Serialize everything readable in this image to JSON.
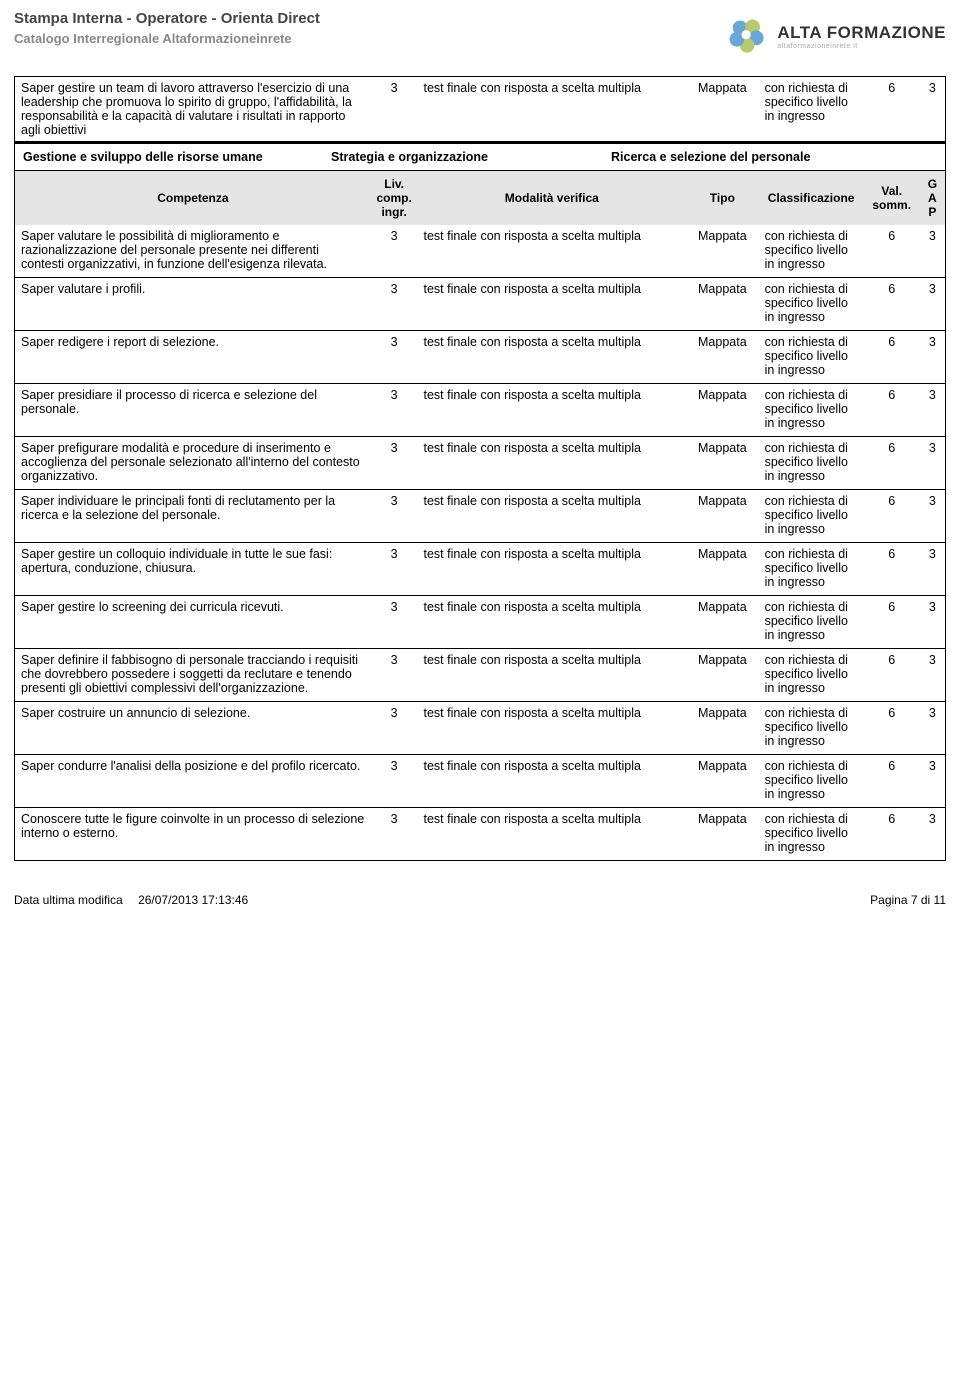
{
  "header": {
    "title": "Stampa Interna - Operatore - Orienta Direct",
    "subtitle": "Catalogo Interregionale Altaformazioneinrete",
    "logo_big": "ALTA FORMAZIONE",
    "logo_small": "altaformazioneinrete.it"
  },
  "top_row": {
    "competenza": "Saper gestire un team di lavoro attraverso l'esercizio di una leadership che promuova lo spirito di gruppo, l'affidabilità, la responsabilità e la capacità di valutare i risultati in rapporto agli obiettivi",
    "liv": "3",
    "modalita": "test finale con risposta a scelta multipla",
    "tipo": "Mappata",
    "classificazione": "con richiesta di specifico livello in ingresso",
    "val": "6",
    "gap": "3"
  },
  "section": {
    "col1": "Gestione e sviluppo delle risorse umane",
    "col2": "Strategia e organizzazione",
    "col3": "Ricerca e selezione del personale"
  },
  "columns": {
    "competenza": "Competenza",
    "liv": "Liv. comp. ingr.",
    "modalita": "Modalità verifica",
    "tipo": "Tipo",
    "classificazione": "Classificazione",
    "val": "Val. somm.",
    "gap": "G A P"
  },
  "rows": [
    {
      "competenza": "Saper valutare le possibilità di miglioramento e razionalizzazione del personale presente nei differenti contesti organizzativi, in funzione dell'esigenza rilevata.",
      "liv": "3",
      "modalita": "test finale con risposta a scelta multipla",
      "tipo": "Mappata",
      "classificazione": "con richiesta di specifico livello in ingresso",
      "val": "6",
      "gap": "3"
    },
    {
      "competenza": "Saper valutare i profili.",
      "liv": "3",
      "modalita": "test finale con risposta a scelta multipla",
      "tipo": "Mappata",
      "classificazione": "con richiesta di specifico livello in ingresso",
      "val": "6",
      "gap": "3"
    },
    {
      "competenza": "Saper redigere i report di selezione.",
      "liv": "3",
      "modalita": "test finale con risposta a scelta multipla",
      "tipo": "Mappata",
      "classificazione": "con richiesta di specifico livello in ingresso",
      "val": "6",
      "gap": "3"
    },
    {
      "competenza": "Saper presidiare il processo di ricerca e selezione del personale.",
      "liv": "3",
      "modalita": "test finale con risposta a scelta multipla",
      "tipo": "Mappata",
      "classificazione": "con richiesta di specifico livello in ingresso",
      "val": "6",
      "gap": "3"
    },
    {
      "competenza": "Saper prefigurare modalità e procedure di inserimento e accoglienza del personale selezionato all'interno del contesto organizzativo.",
      "liv": "3",
      "modalita": "test finale con risposta a scelta multipla",
      "tipo": "Mappata",
      "classificazione": "con richiesta di specifico livello in ingresso",
      "val": "6",
      "gap": "3"
    },
    {
      "competenza": "Saper individuare le principali fonti di reclutamento per la ricerca e la selezione del personale.",
      "liv": "3",
      "modalita": "test finale con risposta a scelta multipla",
      "tipo": "Mappata",
      "classificazione": "con richiesta di specifico livello in ingresso",
      "val": "6",
      "gap": "3"
    },
    {
      "competenza": "Saper gestire un colloquio individuale in tutte le sue fasi: apertura, conduzione, chiusura.",
      "liv": "3",
      "modalita": "test finale con risposta a scelta multipla",
      "tipo": "Mappata",
      "classificazione": "con richiesta di specifico livello in ingresso",
      "val": "6",
      "gap": "3"
    },
    {
      "competenza": "Saper gestire lo screening dei curricula ricevuti.",
      "liv": "3",
      "modalita": "test finale con risposta a scelta multipla",
      "tipo": "Mappata",
      "classificazione": "con richiesta di specifico livello in ingresso",
      "val": "6",
      "gap": "3"
    },
    {
      "competenza": "Saper definire il fabbisogno di personale tracciando i requisiti che dovrebbero possedere i soggetti da reclutare e tenendo presenti gli obiettivi complessivi dell'organizzazione.",
      "liv": "3",
      "modalita": "test finale con risposta a scelta multipla",
      "tipo": "Mappata",
      "classificazione": "con richiesta di specifico livello in ingresso",
      "val": "6",
      "gap": "3"
    },
    {
      "competenza": "Saper costruire un annuncio di selezione.",
      "liv": "3",
      "modalita": "test finale con risposta a scelta multipla",
      "tipo": "Mappata",
      "classificazione": "con richiesta di specifico livello in ingresso",
      "val": "6",
      "gap": "3"
    },
    {
      "competenza": "Saper condurre l'analisi della posizione e del profilo ricercato.",
      "liv": "3",
      "modalita": "test finale con risposta a scelta multipla",
      "tipo": "Mappata",
      "classificazione": "con richiesta di specifico livello in ingresso",
      "val": "6",
      "gap": "3"
    },
    {
      "competenza": "Conoscere tutte le figure coinvolte in un processo di selezione interno o esterno.",
      "liv": "3",
      "modalita": "test finale con risposta a scelta multipla",
      "tipo": "Mappata",
      "classificazione": "con richiesta di specifico livello in ingresso",
      "val": "6",
      "gap": "3"
    }
  ],
  "footer": {
    "date_label": "Data ultima modifica",
    "date_value": "26/07/2013 17:13:46",
    "page": "Pagina 7 di 11"
  }
}
